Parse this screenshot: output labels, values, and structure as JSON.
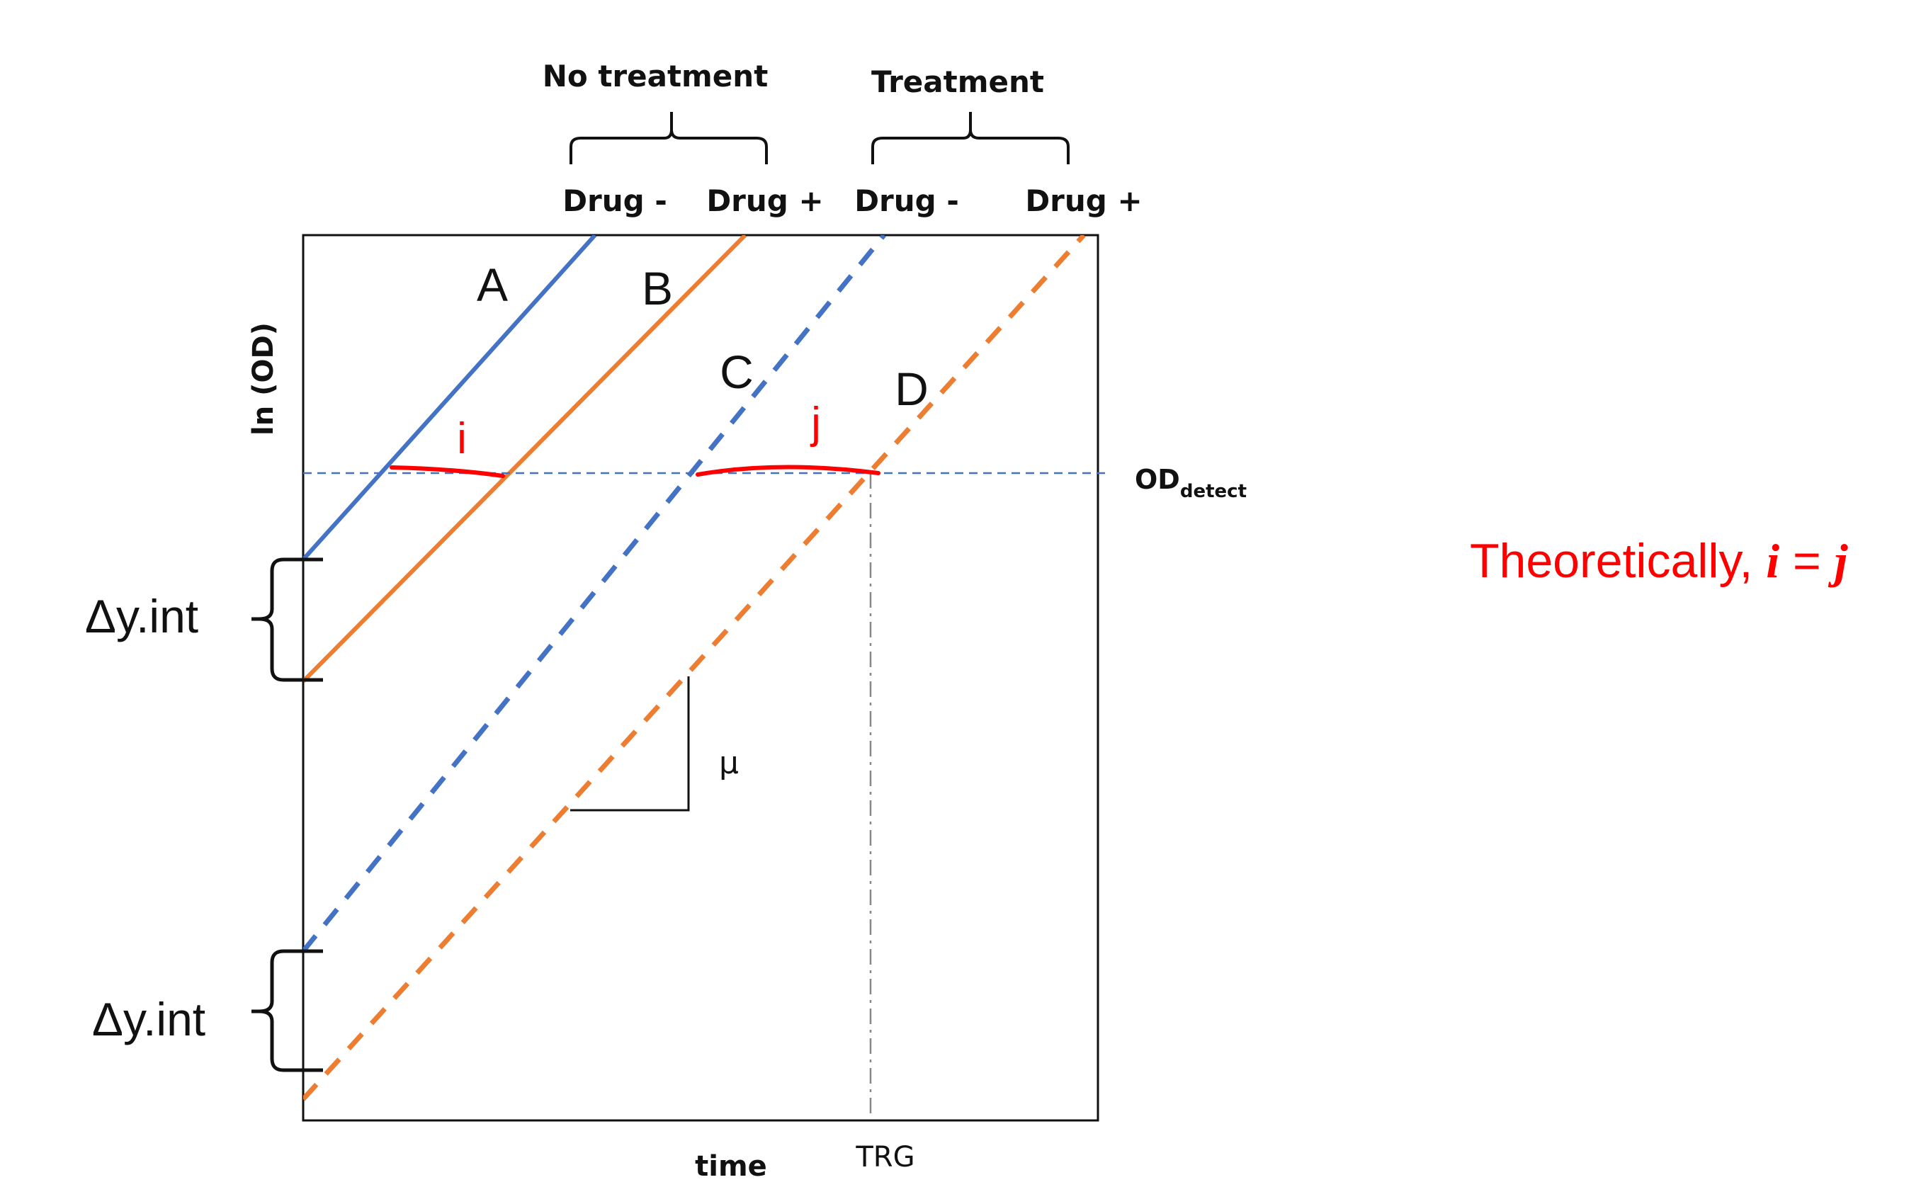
{
  "header": {
    "group_left": "No treatment",
    "group_right": "Treatment",
    "conditions": [
      "Drug -",
      "Drug +",
      "Drug -",
      "Drug +"
    ]
  },
  "axes": {
    "ylabel": "ln (OD)",
    "xlabel": "time",
    "trg_label": "TRG"
  },
  "threshold": {
    "label_main": "OD",
    "label_sub": "detect"
  },
  "lines": [
    {
      "id": "A",
      "label": "A",
      "style": "solid",
      "color": "#4472c4"
    },
    {
      "id": "B",
      "label": "B",
      "style": "solid",
      "color": "#ed7d31"
    },
    {
      "id": "C",
      "label": "C",
      "style": "dashed",
      "color": "#4472c4"
    },
    {
      "id": "D",
      "label": "D",
      "style": "dashed",
      "color": "#ed7d31"
    }
  ],
  "slope_label": "μ",
  "intercept_labels": [
    "Δy.int",
    "Δy.int"
  ],
  "annotations": {
    "i_mark": "i",
    "j_mark": "j",
    "note_prefix": "Theoretically, ",
    "note_i": "i",
    "note_eq": " = ",
    "note_j": "j",
    "color": "#ff0000"
  }
}
